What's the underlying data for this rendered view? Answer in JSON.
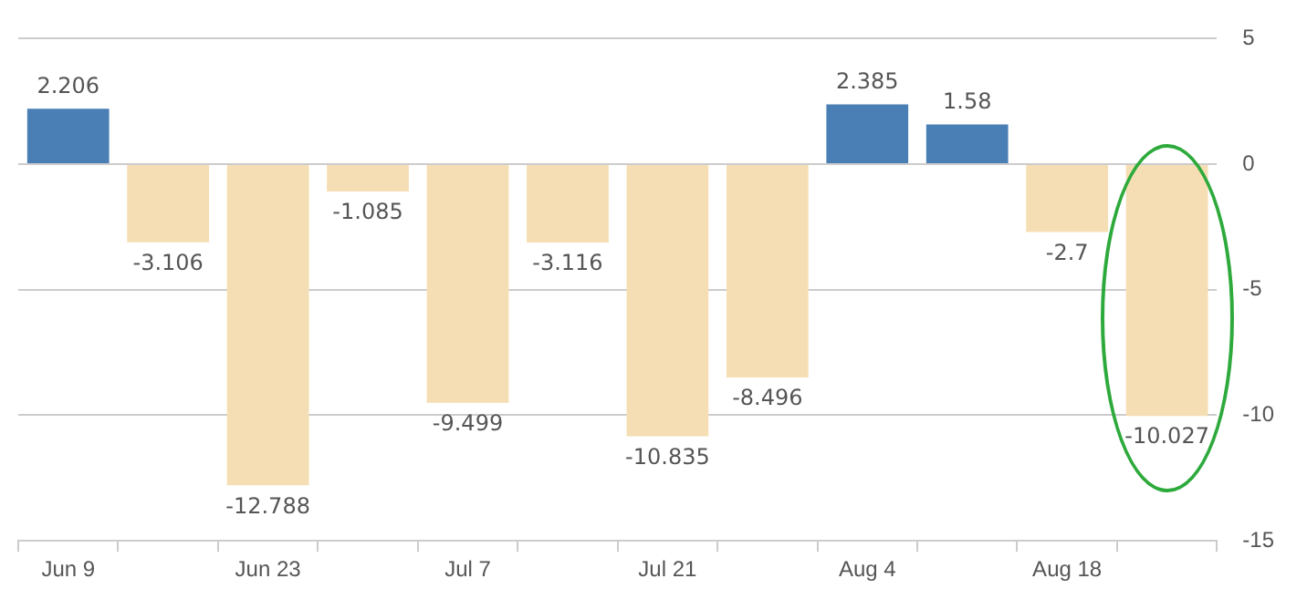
{
  "chart_data": {
    "type": "bar",
    "categories": [
      "Jun 9",
      null,
      "Jun 23",
      null,
      "Jul 7",
      null,
      "Jul 21",
      null,
      "Aug 4",
      null,
      "Aug 18",
      null
    ],
    "values": [
      2.206,
      -3.106,
      -12.788,
      -1.085,
      -9.499,
      -3.116,
      -10.835,
      -8.496,
      2.385,
      1.58,
      -2.7,
      -10.027
    ],
    "colors": [
      "#4a7fb5",
      "#f5deb3",
      "#f5deb3",
      "#f5deb3",
      "#f5deb3",
      "#f5deb3",
      "#f5deb3",
      "#f5deb3",
      "#4a7fb5",
      "#4a7fb5",
      "#f5deb3",
      "#f5deb3"
    ],
    "value_labels": [
      "2.206",
      "-3.106",
      "-12.788",
      "-1.085",
      "-9.499",
      "-3.116",
      "-10.835",
      "-8.496",
      "2.385",
      "1.58",
      "-2.7",
      "-10.027"
    ],
    "ylim": [
      -15,
      5
    ],
    "yticks": [
      5,
      0,
      -5,
      -10,
      -15
    ],
    "grid": "y"
  }
}
